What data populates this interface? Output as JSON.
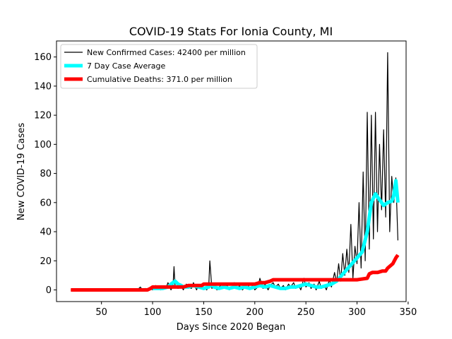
{
  "chart_data": {
    "type": "line",
    "title": "COVID-19 Stats For Ionia County, MI",
    "xlabel": "Days Since 2020 Began",
    "ylabel": "New COVID-19 Cases",
    "xlim": [
      6,
      348
    ],
    "ylim": [
      -8,
      171
    ],
    "xticks": [
      50,
      100,
      150,
      200,
      250,
      300,
      350
    ],
    "yticks": [
      0,
      20,
      40,
      60,
      80,
      100,
      120,
      140,
      160
    ],
    "grid": false,
    "legend_position": "top-left",
    "series": [
      {
        "name": "New Confirmed Cases: 42400 per million",
        "color": "#000000",
        "x": [
          20,
          85,
          88,
          90,
          93,
          95,
          98,
          100,
          103,
          105,
          108,
          110,
          113,
          115,
          118,
          120,
          121,
          122,
          125,
          128,
          130,
          133,
          135,
          138,
          140,
          143,
          145,
          148,
          150,
          153,
          155,
          156,
          158,
          160,
          163,
          165,
          168,
          170,
          173,
          175,
          178,
          180,
          183,
          185,
          188,
          190,
          193,
          195,
          198,
          200,
          203,
          205,
          208,
          210,
          213,
          215,
          218,
          220,
          223,
          225,
          228,
          230,
          233,
          235,
          238,
          240,
          243,
          245,
          248,
          250,
          253,
          255,
          258,
          260,
          263,
          265,
          268,
          270,
          273,
          275,
          278,
          280,
          282,
          284,
          286,
          288,
          290,
          292,
          294,
          296,
          298,
          300,
          302,
          304,
          306,
          308,
          310,
          312,
          314,
          316,
          318,
          320,
          322,
          324,
          326,
          328,
          330,
          332,
          334,
          336,
          338,
          340
        ],
        "values": [
          0,
          0,
          2,
          0,
          1,
          0,
          2,
          0,
          3,
          1,
          0,
          2,
          1,
          5,
          0,
          3,
          16,
          2,
          1,
          3,
          0,
          4,
          2,
          1,
          5,
          0,
          3,
          1,
          2,
          0,
          4,
          20,
          1,
          3,
          0,
          2,
          4,
          1,
          3,
          0,
          2,
          5,
          1,
          3,
          0,
          2,
          4,
          1,
          3,
          0,
          2,
          8,
          1,
          4,
          0,
          3,
          5,
          2,
          4,
          1,
          3,
          0,
          4,
          2,
          5,
          1,
          3,
          0,
          8,
          2,
          5,
          1,
          4,
          0,
          6,
          1,
          3,
          0,
          7,
          2,
          12,
          5,
          18,
          6,
          25,
          10,
          28,
          12,
          45,
          8,
          30,
          18,
          60,
          15,
          81,
          20,
          122,
          28,
          120,
          35,
          122,
          40,
          100,
          55,
          110,
          50,
          163,
          40,
          78,
          60,
          77,
          34
        ]
      },
      {
        "name": "7 Day Case Average",
        "color": "#00ffff",
        "x": [
          100,
          110,
          115,
          118,
          120,
          122,
          125,
          128,
          130,
          135,
          140,
          145,
          150,
          155,
          158,
          160,
          165,
          170,
          175,
          180,
          185,
          190,
          195,
          200,
          205,
          210,
          215,
          220,
          225,
          230,
          235,
          240,
          245,
          250,
          255,
          260,
          265,
          270,
          275,
          280,
          285,
          290,
          295,
          300,
          305,
          310,
          314,
          318,
          322,
          326,
          330,
          334,
          336,
          338,
          340
        ],
        "values": [
          1,
          1,
          2,
          4,
          5,
          6,
          4,
          3,
          2,
          2,
          3,
          2,
          1,
          2,
          4,
          2,
          1,
          2,
          1,
          2,
          1,
          2,
          1,
          2,
          3,
          2,
          3,
          2,
          1,
          1,
          2,
          2,
          3,
          4,
          3,
          2,
          2,
          3,
          4,
          6,
          10,
          14,
          18,
          22,
          26,
          40,
          60,
          66,
          62,
          58,
          60,
          61,
          65,
          75,
          60
        ]
      },
      {
        "name": "Cumulative Deaths: 371.0 per million",
        "color": "#ff0000",
        "x": [
          20,
          95,
          98,
          100,
          130,
          135,
          140,
          145,
          148,
          150,
          200,
          205,
          210,
          215,
          218,
          220,
          300,
          310,
          312,
          315,
          320,
          325,
          328,
          330,
          335,
          338,
          340
        ],
        "values": [
          0,
          0,
          1,
          2,
          2,
          3,
          3,
          3,
          3,
          4,
          4,
          5,
          5,
          6,
          7,
          7,
          7,
          8,
          11,
          12,
          12,
          13,
          13,
          15,
          18,
          22,
          24
        ]
      }
    ]
  }
}
